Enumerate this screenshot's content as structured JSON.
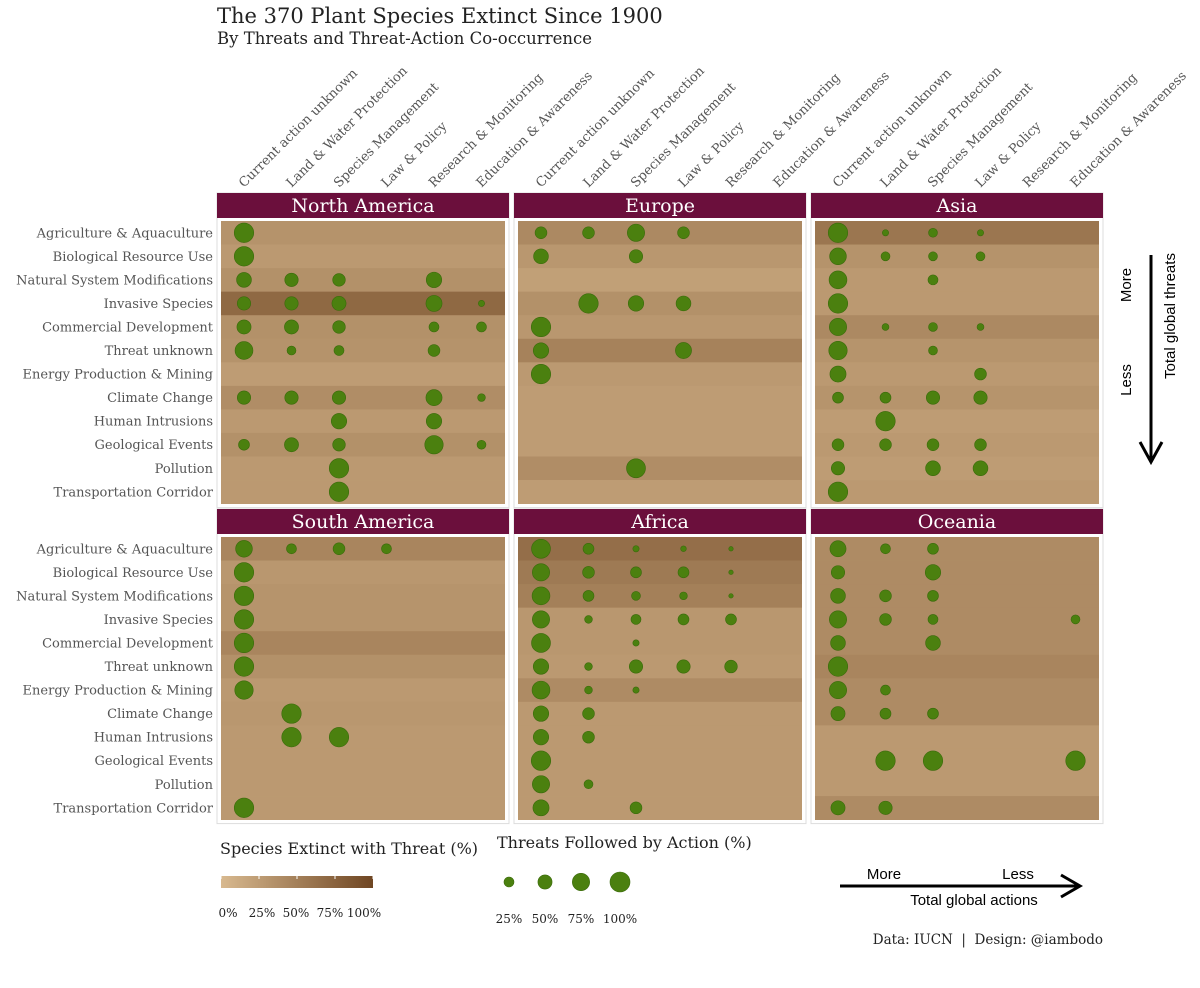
{
  "chart_data": {
    "type": "heatmap",
    "title": "The 370 Plant Species Extinct Since 1900",
    "subtitle": "By Threats and Threat-Action Co-occurrence",
    "threats": [
      "Agriculture & Aquaculture",
      "Biological Resource Use",
      "Natural System Modifications",
      "Invasive Species",
      "Commercial Development",
      "Threat unknown",
      "Energy Production & Mining",
      "Climate Change",
      "Human Intrusions",
      "Geological Events",
      "Pollution",
      "Transportation Corridor"
    ],
    "actions": [
      "Current action unknown",
      "Land & Water Protection",
      "Species Management",
      "Law & Policy",
      "Research & Monitoring",
      "Education & Awareness"
    ],
    "panels": [
      {
        "name": "North America",
        "threat_pct": [
          33,
          28,
          35,
          70,
          35,
          33,
          25,
          38,
          28,
          35,
          28,
          28
        ],
        "action_pct": [
          [
            95,
            0,
            0,
            0,
            0,
            0
          ],
          [
            95,
            0,
            0,
            0,
            0,
            0
          ],
          [
            55,
            45,
            40,
            0,
            60,
            0
          ],
          [
            45,
            45,
            50,
            0,
            65,
            10
          ],
          [
            50,
            50,
            40,
            0,
            25,
            25
          ],
          [
            80,
            20,
            25,
            0,
            35,
            0
          ],
          [
            0,
            0,
            0,
            0,
            0,
            0
          ],
          [
            45,
            45,
            45,
            0,
            65,
            15
          ],
          [
            0,
            0,
            60,
            0,
            60,
            0
          ],
          [
            30,
            50,
            40,
            0,
            85,
            20
          ],
          [
            0,
            0,
            95,
            0,
            0,
            0
          ],
          [
            0,
            0,
            95,
            0,
            0,
            0
          ]
        ]
      },
      {
        "name": "Europe",
        "threat_pct": [
          42,
          30,
          22,
          35,
          30,
          48,
          28,
          25,
          25,
          25,
          38,
          25
        ],
        "action_pct": [
          [
            35,
            35,
            75,
            35,
            0,
            0
          ],
          [
            55,
            0,
            45,
            0,
            0,
            0
          ],
          [
            0,
            0,
            0,
            0,
            0,
            0
          ],
          [
            0,
            95,
            60,
            55,
            0,
            0
          ],
          [
            95,
            0,
            0,
            0,
            0,
            0
          ],
          [
            60,
            0,
            0,
            65,
            0,
            0
          ],
          [
            95,
            0,
            0,
            0,
            0,
            0
          ],
          [
            0,
            0,
            0,
            0,
            0,
            0
          ],
          [
            0,
            0,
            0,
            0,
            0,
            0
          ],
          [
            0,
            0,
            0,
            0,
            0,
            0
          ],
          [
            0,
            0,
            90,
            0,
            0,
            0
          ],
          [
            0,
            0,
            0,
            0,
            0,
            0
          ]
        ]
      },
      {
        "name": "Asia",
        "threat_pct": [
          58,
          33,
          28,
          28,
          42,
          32,
          28,
          32,
          25,
          28,
          25,
          28
        ],
        "action_pct": [
          [
            95,
            10,
            20,
            10,
            0,
            0
          ],
          [
            70,
            20,
            20,
            20,
            0,
            0
          ],
          [
            80,
            0,
            25,
            0,
            0,
            0
          ],
          [
            95,
            0,
            0,
            0,
            0,
            0
          ],
          [
            75,
            12,
            20,
            12,
            0,
            0
          ],
          [
            85,
            0,
            20,
            0,
            0,
            0
          ],
          [
            65,
            0,
            0,
            35,
            0,
            0
          ],
          [
            30,
            30,
            45,
            45,
            0,
            0
          ],
          [
            0,
            95,
            0,
            0,
            0,
            0
          ],
          [
            35,
            35,
            35,
            35,
            0,
            0
          ],
          [
            45,
            0,
            55,
            55,
            0,
            0
          ],
          [
            95,
            0,
            0,
            0,
            0,
            0
          ]
        ]
      },
      {
        "name": "South America",
        "threat_pct": [
          45,
          30,
          32,
          32,
          45,
          35,
          28,
          30,
          28,
          28,
          28,
          28
        ],
        "action_pct": [
          [
            70,
            25,
            35,
            25,
            0,
            0
          ],
          [
            95,
            0,
            0,
            0,
            0,
            0
          ],
          [
            95,
            0,
            0,
            0,
            0,
            0
          ],
          [
            95,
            0,
            0,
            0,
            0,
            0
          ],
          [
            95,
            0,
            0,
            0,
            0,
            0
          ],
          [
            95,
            0,
            0,
            0,
            0,
            0
          ],
          [
            85,
            0,
            0,
            0,
            0,
            0
          ],
          [
            0,
            95,
            0,
            0,
            0,
            0
          ],
          [
            0,
            95,
            95,
            0,
            0,
            0
          ],
          [
            0,
            0,
            0,
            0,
            0,
            0
          ],
          [
            0,
            0,
            0,
            0,
            0,
            0
          ],
          [
            95,
            0,
            0,
            0,
            0,
            0
          ]
        ]
      },
      {
        "name": "Africa",
        "threat_pct": [
          65,
          55,
          50,
          30,
          30,
          28,
          40,
          28,
          28,
          28,
          28,
          28
        ],
        "action_pct": [
          [
            90,
            30,
            10,
            8,
            5,
            0
          ],
          [
            75,
            35,
            30,
            30,
            5,
            0
          ],
          [
            80,
            30,
            20,
            15,
            5,
            0
          ],
          [
            75,
            15,
            25,
            30,
            30,
            0
          ],
          [
            90,
            0,
            10,
            0,
            0,
            0
          ],
          [
            60,
            15,
            45,
            45,
            40,
            0
          ],
          [
            80,
            15,
            10,
            0,
            0,
            0
          ],
          [
            60,
            35,
            0,
            0,
            0,
            0
          ],
          [
            60,
            35,
            0,
            0,
            0,
            0
          ],
          [
            95,
            0,
            0,
            0,
            0,
            0
          ],
          [
            75,
            20,
            0,
            0,
            0,
            0
          ],
          [
            65,
            0,
            35,
            0,
            0,
            0
          ]
        ]
      },
      {
        "name": "Oceania",
        "threat_pct": [
          40,
          40,
          40,
          40,
          40,
          45,
          40,
          40,
          28,
          28,
          28,
          40
        ],
        "action_pct": [
          [
            65,
            25,
            30,
            0,
            0,
            0
          ],
          [
            45,
            0,
            60,
            0,
            0,
            0
          ],
          [
            55,
            35,
            30,
            0,
            0,
            0
          ],
          [
            75,
            35,
            25,
            0,
            0,
            20
          ],
          [
            55,
            0,
            55,
            0,
            0,
            0
          ],
          [
            95,
            0,
            0,
            0,
            0,
            0
          ],
          [
            75,
            25,
            0,
            0,
            0,
            0
          ],
          [
            50,
            30,
            30,
            0,
            0,
            0
          ],
          [
            0,
            0,
            0,
            0,
            0,
            0
          ],
          [
            0,
            95,
            95,
            0,
            0,
            95
          ],
          [
            0,
            0,
            0,
            0,
            0,
            0
          ],
          [
            50,
            45,
            0,
            0,
            0,
            0
          ]
        ]
      }
    ],
    "fill_legend": {
      "title": "Species Extinct with Threat (%)",
      "ticks": [
        "0%",
        "25%",
        "50%",
        "75%",
        "100%"
      ],
      "low_color": "#d8b98f",
      "high_color": "#6f4623"
    },
    "size_legend": {
      "title": "Threats Followed by Action (%)",
      "values": [
        25,
        50,
        75,
        100
      ],
      "ticks": [
        "25%",
        "50%",
        "75%",
        "100%"
      ]
    },
    "threat_axis": {
      "more": "More",
      "less": "Less",
      "label": "Total  global threats"
    },
    "action_axis": {
      "more": "More",
      "less": "Less",
      "label": "Total global actions"
    },
    "colors": {
      "header": "#6b0f3c",
      "bubble": "#4b800f",
      "bubble_stroke": "#3a6a0b"
    },
    "caption": "Data: IUCN  |  Design: @iambodo"
  }
}
